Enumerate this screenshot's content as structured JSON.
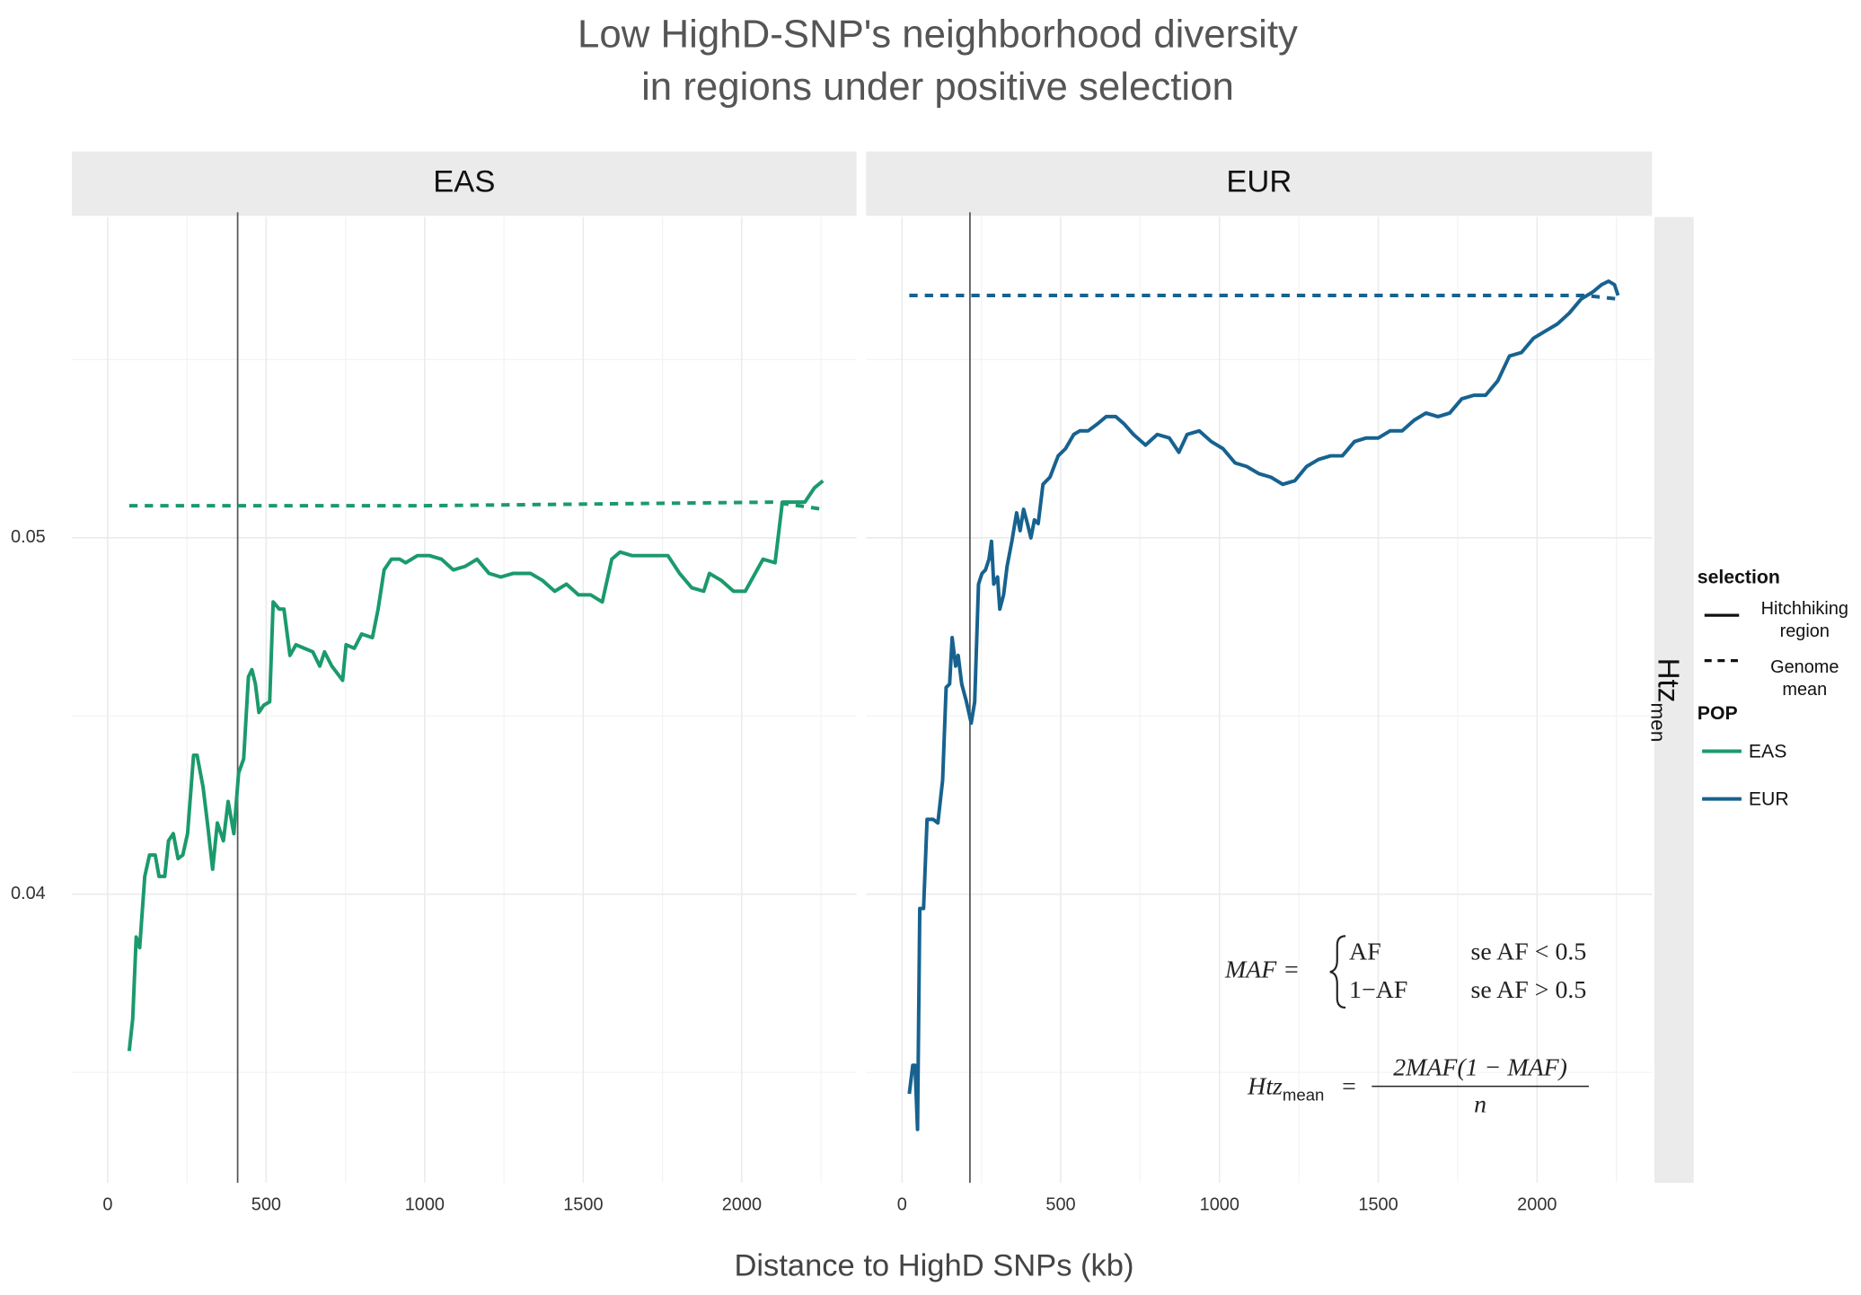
{
  "title": [
    "Low HighD-SNP's neighborhood diversity",
    "in regions under positive selection"
  ],
  "x_label": "Distance to HighD SNPs (kb)",
  "y_label": "Htz",
  "y_label_sub": "men",
  "legend": {
    "selection_title": "selection",
    "selection": [
      {
        "label": [
          "Hitchhiking",
          "region"
        ],
        "linestyle": "solid"
      },
      {
        "label": [
          "Genome",
          "mean"
        ],
        "linestyle": "dashed"
      }
    ],
    "pop_title": "POP"
  },
  "formula": {
    "maf_lhs": "MAF =",
    "cases": [
      [
        "AF",
        "se AF < 0.5"
      ],
      [
        "1−AF",
        "se AF > 0.5"
      ]
    ],
    "htz_lhs": "Htz",
    "htz_sub": "mean",
    "equals": "=",
    "numerator": "2MAF(1 − MAF)",
    "denominator": "n"
  },
  "chart_data": [
    {
      "type": "line",
      "facet": "EAS",
      "xlim": [
        -113,
        2362
      ],
      "ylim": [
        0.0319,
        0.059
      ],
      "xticks": [
        0,
        500,
        1000,
        1500,
        2000
      ],
      "yticks": [
        0.04,
        0.05
      ],
      "x_minor_ticks": [
        250,
        750,
        1250,
        1750,
        2250
      ],
      "y_minor_ticks": [
        0.035,
        0.045,
        0.055
      ],
      "grid": true,
      "vline": 410,
      "series": [
        {
          "name": "EAS",
          "color": "#1b9a6c",
          "linestyle": "solid",
          "x": [
            68,
            79,
            90,
            101,
            117,
            132,
            150,
            162,
            180,
            192,
            207,
            222,
            237,
            252,
            271,
            282,
            301,
            316,
            331,
            346,
            365,
            380,
            398,
            413,
            429,
            444,
            455,
            466,
            477,
            492,
            511,
            522,
            541,
            556,
            575,
            594,
            620,
            647,
            669,
            684,
            707,
            741,
            752,
            778,
            801,
            835,
            853,
            872,
            895,
            921,
            940,
            977,
            1015,
            1053,
            1090,
            1128,
            1165,
            1203,
            1240,
            1278,
            1334,
            1372,
            1410,
            1447,
            1485,
            1523,
            1560,
            1590,
            1616,
            1654,
            1710,
            1767,
            1804,
            1842,
            1880,
            1898,
            1936,
            1974,
            2011,
            2067,
            2105,
            2128,
            2161,
            2199,
            2229,
            2256
          ],
          "values": [
            0.0356,
            0.0365,
            0.0388,
            0.0385,
            0.0405,
            0.0411,
            0.0411,
            0.0405,
            0.0405,
            0.0415,
            0.0417,
            0.041,
            0.0411,
            0.0417,
            0.0439,
            0.0439,
            0.043,
            0.0419,
            0.0407,
            0.042,
            0.0415,
            0.0426,
            0.0417,
            0.0434,
            0.0438,
            0.0461,
            0.0463,
            0.0459,
            0.0451,
            0.0453,
            0.0454,
            0.0482,
            0.048,
            0.048,
            0.0467,
            0.047,
            0.0469,
            0.0468,
            0.0464,
            0.0468,
            0.0464,
            0.046,
            0.047,
            0.0469,
            0.0473,
            0.0472,
            0.048,
            0.0491,
            0.0494,
            0.0494,
            0.0493,
            0.0495,
            0.0495,
            0.0494,
            0.0491,
            0.0492,
            0.0494,
            0.049,
            0.0489,
            0.049,
            0.049,
            0.0488,
            0.0485,
            0.0487,
            0.0484,
            0.0484,
            0.0482,
            0.0494,
            0.0496,
            0.0495,
            0.0495,
            0.0495,
            0.049,
            0.0486,
            0.0485,
            0.049,
            0.0488,
            0.0485,
            0.0485,
            0.0494,
            0.0493,
            0.051,
            0.051,
            0.051,
            0.0514,
            0.0516
          ]
        },
        {
          "color": "#1b9a6c",
          "linestyle": "dashed",
          "x": [
            68,
            1000,
            2100,
            2180,
            2256
          ],
          "values": [
            0.0509,
            0.0509,
            0.051,
            0.0509,
            0.0508
          ]
        }
      ]
    },
    {
      "type": "line",
      "facet": "EUR",
      "xlim": [
        -113,
        2362
      ],
      "ylim": [
        0.0319,
        0.059
      ],
      "xticks": [
        0,
        500,
        1000,
        1500,
        2000
      ],
      "yticks": [
        0.04,
        0.05
      ],
      "x_minor_ticks": [
        250,
        750,
        1250,
        1750,
        2250
      ],
      "y_minor_ticks": [
        0.035,
        0.045,
        0.055
      ],
      "grid": true,
      "vline": 214,
      "series": [
        {
          "name": "EUR",
          "color": "#17628f",
          "linestyle": "solid",
          "x": [
            23,
            34,
            41,
            49,
            56,
            68,
            79,
            98,
            113,
            128,
            139,
            150,
            158,
            169,
            177,
            188,
            203,
            218,
            229,
            241,
            252,
            263,
            274,
            282,
            289,
            301,
            308,
            320,
            331,
            346,
            361,
            372,
            383,
            395,
            406,
            417,
            429,
            444,
            466,
            492,
            515,
            541,
            560,
            586,
            616,
            643,
            673,
            699,
            729,
            767,
            804,
            842,
            872,
            898,
            936,
            974,
            1011,
            1049,
            1086,
            1124,
            1162,
            1199,
            1237,
            1274,
            1312,
            1350,
            1387,
            1425,
            1462,
            1500,
            1537,
            1575,
            1613,
            1650,
            1688,
            1725,
            1763,
            1801,
            1838,
            1876,
            1913,
            1951,
            1989,
            2026,
            2064,
            2101,
            2139,
            2176,
            2203,
            2225,
            2244,
            2255
          ],
          "values": [
            0.0344,
            0.0352,
            0.0352,
            0.0334,
            0.0396,
            0.0396,
            0.0421,
            0.0421,
            0.042,
            0.0432,
            0.0458,
            0.0459,
            0.0472,
            0.0464,
            0.0467,
            0.0459,
            0.0454,
            0.0448,
            0.0454,
            0.0487,
            0.049,
            0.0491,
            0.0494,
            0.0499,
            0.0487,
            0.0489,
            0.048,
            0.0484,
            0.0492,
            0.0499,
            0.0507,
            0.0502,
            0.0508,
            0.0504,
            0.05,
            0.0505,
            0.0504,
            0.0515,
            0.0517,
            0.0523,
            0.0525,
            0.0529,
            0.053,
            0.053,
            0.0532,
            0.0534,
            0.0534,
            0.0532,
            0.0529,
            0.0526,
            0.0529,
            0.0528,
            0.0524,
            0.0529,
            0.053,
            0.0527,
            0.0525,
            0.0521,
            0.052,
            0.0518,
            0.0517,
            0.0515,
            0.0516,
            0.052,
            0.0522,
            0.0523,
            0.0523,
            0.0527,
            0.0528,
            0.0528,
            0.053,
            0.053,
            0.0533,
            0.0535,
            0.0534,
            0.0535,
            0.0539,
            0.054,
            0.054,
            0.0544,
            0.0551,
            0.0552,
            0.0556,
            0.0558,
            0.056,
            0.0563,
            0.0567,
            0.0569,
            0.0571,
            0.0572,
            0.0571,
            0.0568
          ]
        },
        {
          "color": "#17628f",
          "linestyle": "dashed",
          "x": [
            23,
            1000,
            2150,
            2255
          ],
          "values": [
            0.0568,
            0.0568,
            0.0568,
            0.0567
          ]
        }
      ]
    }
  ]
}
